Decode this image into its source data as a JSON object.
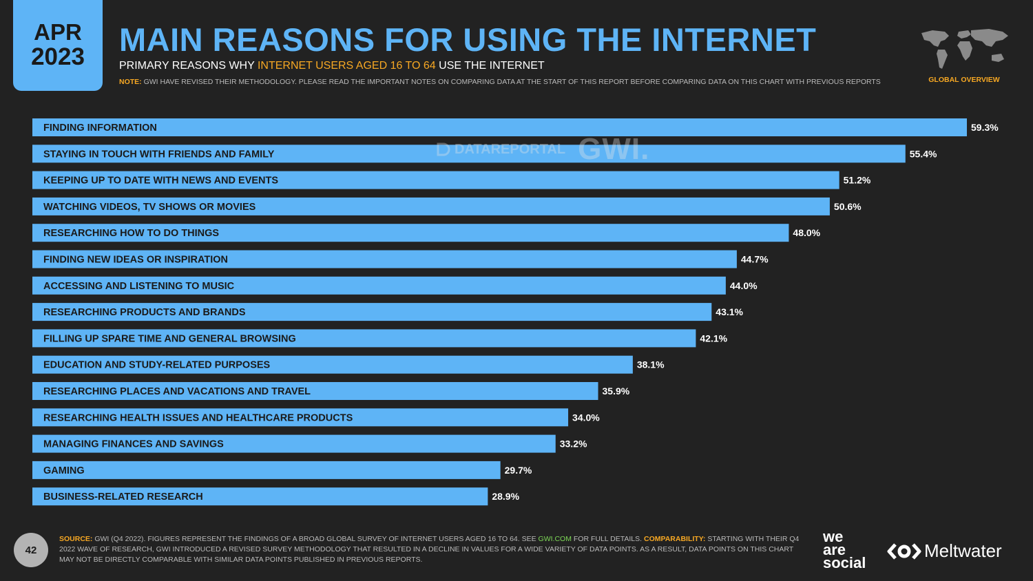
{
  "header": {
    "date_month": "APR",
    "date_year": "2023",
    "title": "MAIN REASONS FOR USING THE INTERNET",
    "subtitle_pre": "PRIMARY REASONS WHY ",
    "subtitle_highlight": "INTERNET USERS AGED 16 TO 64",
    "subtitle_post": " USE THE INTERNET",
    "note_label": "NOTE:",
    "note_text": "GWI HAVE REVISED THEIR METHODOLOGY. PLEASE READ THE IMPORTANT NOTES ON COMPARING DATA AT THE START OF THIS REPORT BEFORE COMPARING DATA ON THIS CHART WITH PREVIOUS REPORTS",
    "section_label": "GLOBAL OVERVIEW"
  },
  "watermark": {
    "datareportal": "DATAREPORTAL",
    "gwi": "GWI."
  },
  "chart_data": {
    "type": "bar",
    "orientation": "horizontal",
    "bar_color": "#5eb4f6",
    "value_suffix": "%",
    "xlim": [
      0,
      59.3
    ],
    "categories": [
      "FINDING INFORMATION",
      "STAYING IN TOUCH WITH FRIENDS AND FAMILY",
      "KEEPING UP TO DATE WITH NEWS AND EVENTS",
      "WATCHING VIDEOS, TV SHOWS OR MOVIES",
      "RESEARCHING HOW TO DO THINGS",
      "FINDING NEW IDEAS OR INSPIRATION",
      "ACCESSING AND LISTENING TO MUSIC",
      "RESEARCHING PRODUCTS AND BRANDS",
      "FILLING UP SPARE TIME AND GENERAL BROWSING",
      "EDUCATION AND STUDY-RELATED PURPOSES",
      "RESEARCHING PLACES AND VACATIONS AND TRAVEL",
      "RESEARCHING HEALTH ISSUES AND HEALTHCARE PRODUCTS",
      "MANAGING FINANCES AND SAVINGS",
      "GAMING",
      "BUSINESS-RELATED RESEARCH"
    ],
    "values": [
      59.3,
      55.4,
      51.2,
      50.6,
      48.0,
      44.7,
      44.0,
      43.1,
      42.1,
      38.1,
      35.9,
      34.0,
      33.2,
      29.7,
      28.9
    ],
    "value_labels": [
      "59.3%",
      "55.4%",
      "51.2%",
      "50.6%",
      "48.0%",
      "44.7%",
      "44.0%",
      "43.1%",
      "42.1%",
      "38.1%",
      "35.9%",
      "34.0%",
      "33.2%",
      "29.7%",
      "28.9%"
    ]
  },
  "footer": {
    "page_number": "42",
    "source_label": "SOURCE:",
    "source_text_1": " GWI (Q4 2022). FIGURES REPRESENT THE FINDINGS OF A BROAD GLOBAL SURVEY OF INTERNET USERS AGED 16 TO 64. SEE ",
    "source_link": "GWI.COM",
    "source_text_2": " FOR FULL DETAILS. ",
    "comparability_label": "COMPARABILITY:",
    "comparability_text": " STARTING WITH THEIR Q4 2022 WAVE OF RESEARCH, GWI INTRODUCED A REVISED SURVEY METHODOLOGY THAT RESULTED IN A DECLINE IN VALUES FOR A WIDE VARIETY OF DATA POINTS. AS A RESULT, DATA POINTS ON THIS CHART MAY NOT BE DIRECTLY COMPARABLE WITH SIMILAR DATA POINTS PUBLISHED IN PREVIOUS REPORTS.",
    "logo_we": "we",
    "logo_are": "are",
    "logo_social": "social",
    "logo_meltwater": "Meltwater"
  }
}
